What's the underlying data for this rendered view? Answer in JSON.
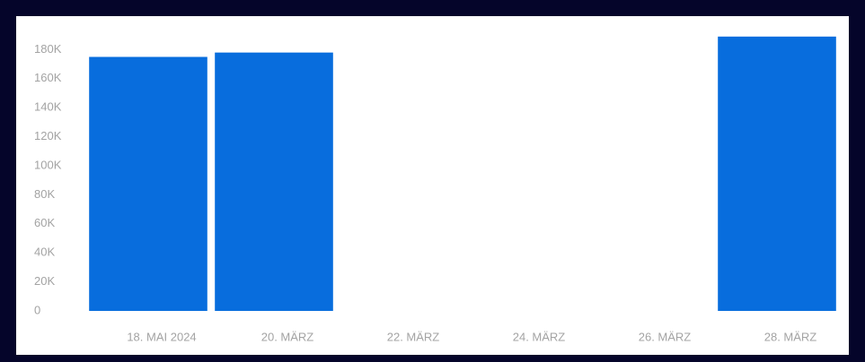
{
  "chart_data": {
    "type": "bar",
    "categories": [
      "18. MAI 2024",
      "20. MÄRZ",
      "22. MÄRZ",
      "24. MÄRZ",
      "26. MÄRZ",
      "28. MÄRZ"
    ],
    "values": [
      175000,
      178000,
      null,
      null,
      null,
      189000
    ],
    "color": "#086ddd",
    "ylim": [
      0,
      200000
    ],
    "yticks": [
      0,
      {
        "value": 20000,
        "label": "20K"
      },
      {
        "value": 40000,
        "label": "40K"
      },
      {
        "value": 60000,
        "label": "60K"
      },
      {
        "value": 80000,
        "label": "80K"
      },
      {
        "value": 100000,
        "label": "100K"
      },
      {
        "value": 120000,
        "label": "120K"
      },
      {
        "value": 140000,
        "label": "140K"
      },
      {
        "value": 160000,
        "label": "160K"
      },
      {
        "value": 180000,
        "label": "180K"
      }
    ],
    "grid": false
  }
}
